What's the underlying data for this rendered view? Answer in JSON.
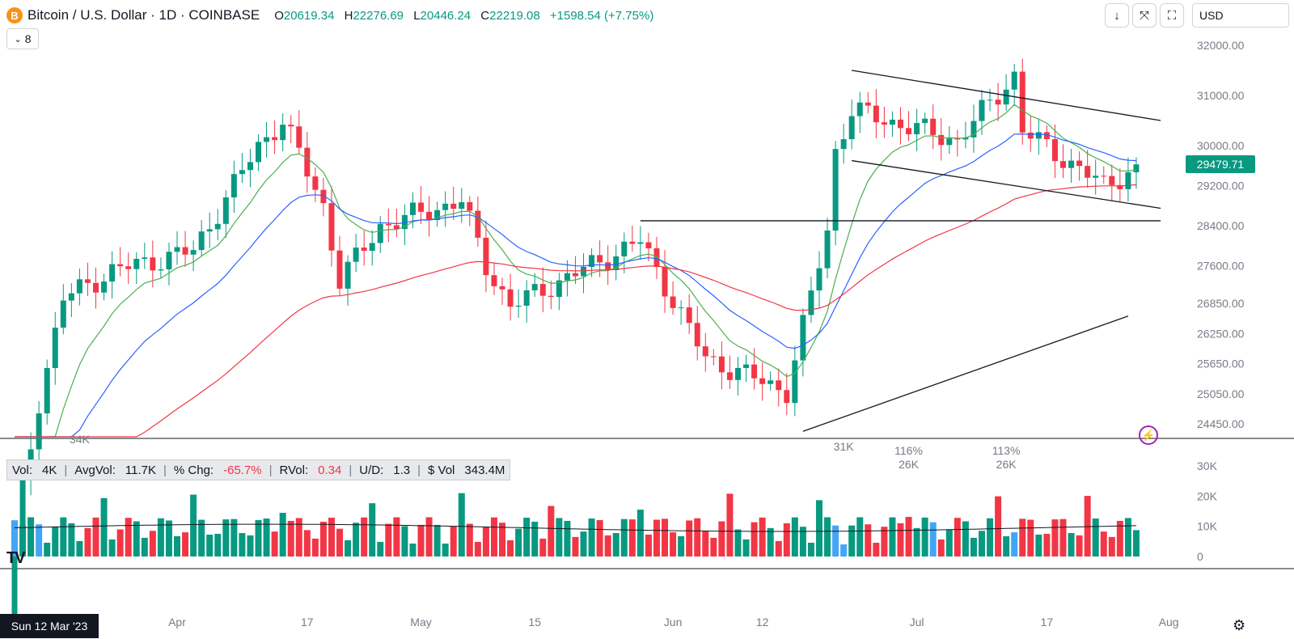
{
  "header": {
    "coin_icon": "B",
    "symbol_title": "Bitcoin / U.S. Dollar · 1D · COINBASE",
    "o_label": "O",
    "o_value": "20619.34",
    "h_label": "H",
    "h_value": "22276.69",
    "l_label": "L",
    "l_value": "20446.24",
    "c_label": "C",
    "c_value": "22219.08",
    "change": "+1598.54 (+7.75%)",
    "indicators_count": "8"
  },
  "toolbar": {
    "currency": "USD"
  },
  "volume_legend": {
    "vol_label": "Vol:",
    "vol_value": "4K",
    "avgvol_label": "AvgVol:",
    "avgvol_value": "11.7K",
    "chg_label": "% Chg:",
    "chg_value": "-65.7%",
    "rvol_label": "RVol:",
    "rvol_value": "0.34",
    "ud_label": "U/D:",
    "ud_value": "1.3",
    "dvol_label": "$ Vol",
    "dvol_value": "343.4M"
  },
  "last_price_label": "29479.71",
  "crosshair_date": "Sun 12 Mar '23",
  "colors": {
    "up": "#089981",
    "down": "#f23645",
    "ema_short": "#4caf50",
    "ema_mid": "#2962ff",
    "ema_long": "#f23645",
    "highlight_volume": "#42a5f5"
  },
  "chart_data": [
    {
      "type": "candlestick",
      "title": "Bitcoin / U.S. Dollar · 1D · COINBASE",
      "price_axis_ticks": [
        "32000.00",
        "31000.00",
        "30000.00",
        "29200.00",
        "28400.00",
        "27600.00",
        "26850.00",
        "26250.00",
        "25650.00",
        "25050.00",
        "24450.00"
      ],
      "x_axis_ticks": [
        "Apr",
        "17",
        "May",
        "15",
        "Jun",
        "12",
        "Jul",
        "17",
        "Aug"
      ],
      "ylim": [
        24000,
        32500
      ],
      "series_ohlc_sampled": [
        {
          "date": "2023-03-12",
          "o": 20619,
          "h": 22277,
          "l": 20446,
          "c": 22219
        },
        {
          "date": "2023-03-15",
          "o": 24100,
          "h": 25200,
          "l": 23900,
          "c": 24900
        },
        {
          "date": "2023-03-18",
          "o": 27400,
          "h": 27700,
          "l": 26800,
          "c": 26950
        },
        {
          "date": "2023-03-24",
          "o": 28000,
          "h": 28600,
          "l": 27000,
          "c": 27500
        },
        {
          "date": "2023-04-03",
          "o": 28400,
          "h": 28500,
          "l": 27800,
          "c": 27900
        },
        {
          "date": "2023-04-11",
          "o": 28300,
          "h": 30100,
          "l": 28200,
          "c": 30000
        },
        {
          "date": "2023-04-14",
          "o": 30400,
          "h": 31000,
          "l": 30200,
          "c": 30500
        },
        {
          "date": "2023-04-19",
          "o": 30400,
          "h": 30500,
          "l": 28600,
          "c": 28800
        },
        {
          "date": "2023-04-21",
          "o": 28800,
          "h": 28900,
          "l": 27200,
          "c": 27300
        },
        {
          "date": "2023-04-26",
          "o": 27500,
          "h": 29900,
          "l": 27200,
          "c": 28400
        },
        {
          "date": "2023-05-06",
          "o": 29500,
          "h": 29800,
          "l": 28800,
          "c": 28900
        },
        {
          "date": "2023-05-09",
          "o": 28400,
          "h": 28600,
          "l": 27300,
          "c": 27600
        },
        {
          "date": "2023-05-12",
          "o": 27000,
          "h": 27100,
          "l": 25800,
          "c": 26800
        },
        {
          "date": "2023-05-28",
          "o": 27000,
          "h": 28500,
          "l": 26950,
          "c": 28100
        },
        {
          "date": "2023-06-05",
          "o": 27000,
          "h": 27200,
          "l": 25400,
          "c": 25750
        },
        {
          "date": "2023-06-15",
          "o": 25600,
          "h": 25700,
          "l": 24800,
          "c": 25100
        },
        {
          "date": "2023-06-20",
          "o": 26850,
          "h": 28500,
          "l": 26600,
          "c": 28300
        },
        {
          "date": "2023-06-21",
          "o": 28300,
          "h": 30000,
          "l": 28250,
          "c": 29900
        },
        {
          "date": "2023-06-23",
          "o": 29900,
          "h": 31400,
          "l": 29800,
          "c": 30700
        },
        {
          "date": "2023-07-06",
          "o": 31200,
          "h": 31300,
          "l": 29900,
          "c": 30100
        },
        {
          "date": "2023-07-13",
          "o": 30400,
          "h": 31800,
          "l": 30200,
          "c": 31400
        },
        {
          "date": "2023-07-14",
          "o": 31400,
          "h": 31600,
          "l": 30300,
          "c": 30300
        },
        {
          "date": "2023-07-24",
          "o": 30100,
          "h": 30100,
          "l": 29000,
          "c": 29200
        },
        {
          "date": "2023-07-27",
          "o": 29200,
          "h": 29600,
          "l": 29100,
          "c": 29480
        }
      ],
      "volume_axis_ticks": [
        "30K",
        "20K",
        "10K",
        "0"
      ],
      "volume_annotations": [
        "34K",
        "31K",
        "116%",
        "26K",
        "113%",
        "26K"
      ]
    }
  ]
}
